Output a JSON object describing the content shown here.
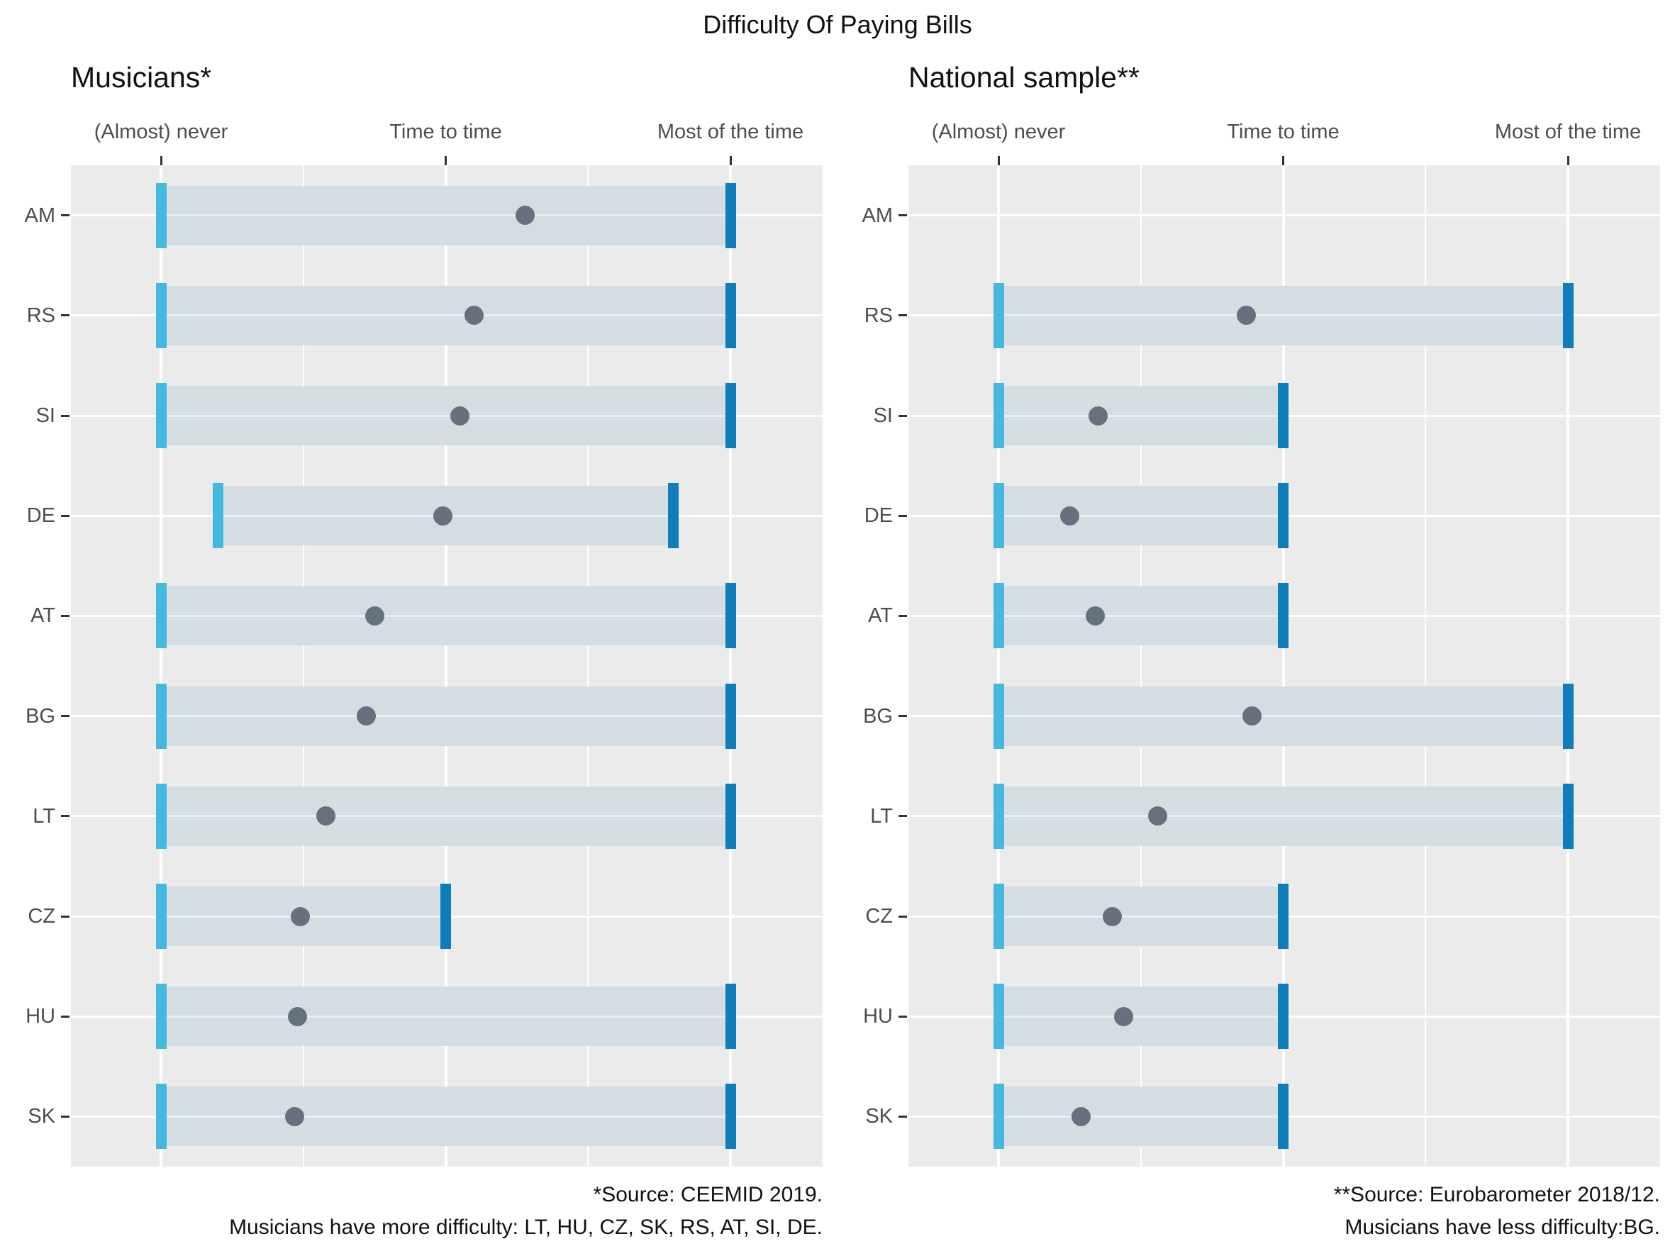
{
  "title": "Difficulty Of Paying Bills",
  "panels": [
    {
      "title": "Musicians*",
      "footnote_line1": "*Source: CEEMID 2019.",
      "footnote_line2": "Musicians have more difficulty: LT, HU, CZ, SK, RS, AT, SI, DE."
    },
    {
      "title": "National sample**",
      "footnote_line1": "**Source: Eurobarometer 2018/12.",
      "footnote_line2": "Musicians have less difficulty:BG."
    }
  ],
  "chart_data": {
    "type": "dumbbell-range",
    "title": "Difficulty Of Paying Bills",
    "x_axis": {
      "tick_labels": [
        "(Almost) never",
        "Time to time",
        "Most of the time"
      ],
      "tick_values": [
        0,
        1,
        2
      ],
      "range": [
        -0.32,
        2.32
      ]
    },
    "categories": [
      "AM",
      "RS",
      "SI",
      "DE",
      "AT",
      "BG",
      "LT",
      "CZ",
      "HU",
      "SK"
    ],
    "series": [
      {
        "name": "Musicians*",
        "ranges": [
          [
            0,
            2
          ],
          [
            0,
            2
          ],
          [
            0,
            2
          ],
          [
            0.2,
            1.8
          ],
          [
            0,
            2
          ],
          [
            0,
            2
          ],
          [
            0,
            2
          ],
          [
            0,
            1
          ],
          [
            0,
            2
          ],
          [
            0,
            2
          ]
        ],
        "means": [
          1.28,
          1.1,
          1.05,
          0.99,
          0.75,
          0.72,
          0.58,
          0.49,
          0.48,
          0.47
        ]
      },
      {
        "name": "National sample**",
        "ranges": [
          null,
          [
            0,
            2
          ],
          [
            0,
            1
          ],
          [
            0,
            1
          ],
          [
            0,
            1
          ],
          [
            0,
            2
          ],
          [
            0,
            2
          ],
          [
            0,
            1
          ],
          [
            0,
            1
          ],
          [
            0,
            1
          ]
        ],
        "means": [
          null,
          0.87,
          0.35,
          0.25,
          0.34,
          0.89,
          0.56,
          0.4,
          0.44,
          0.29
        ]
      }
    ],
    "legend": "grid on (white), legend none",
    "colors": {
      "range_fill": "#D4DDE1",
      "start_tick": "#45B8DE",
      "end_tick": "#0F7DB9",
      "mean_dot": "#66717D",
      "panel_bg": "#EBEBEB",
      "grid": "#FFFFFF",
      "axis_text": "#4D4D4D",
      "tick_mark": "#333333",
      "title_text": "#111111"
    }
  }
}
